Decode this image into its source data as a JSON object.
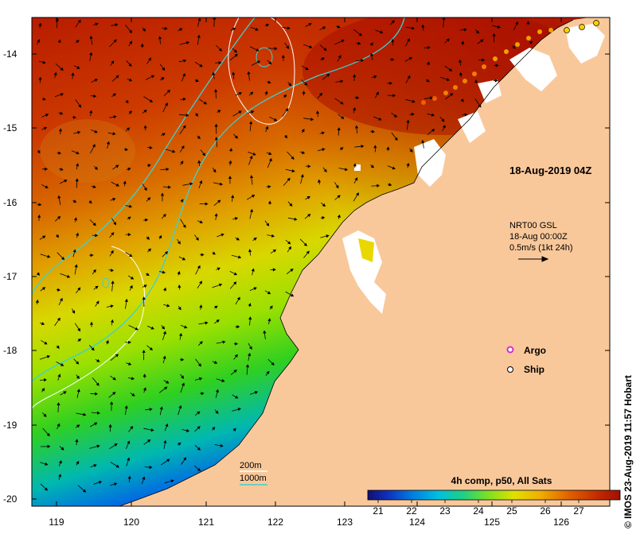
{
  "map": {
    "date_label": "18-Aug-2019 04Z",
    "current_info": {
      "line1": "NRT00 GSL",
      "line2": "18-Aug 00:00Z",
      "line3": "0.5m/s (1kt 24h)"
    },
    "legend": {
      "argo": "Argo",
      "ship": "Ship"
    },
    "isobaths": {
      "shallow": "200m",
      "deep": "1000m"
    },
    "colorbar": {
      "title": "4h comp, p50, All Sats",
      "ticks": [
        "21",
        "22",
        "23",
        "24",
        "25",
        "26",
        "27"
      ]
    },
    "credit": "© IMOS 23-Aug-2019 11:57 Hobart",
    "x_ticks": [
      "119",
      "120",
      "121",
      "122",
      "123",
      "124",
      "125",
      "126"
    ],
    "y_ticks": [
      "-14",
      "-15",
      "-16",
      "-17",
      "-18",
      "-19",
      "-20"
    ],
    "colors": {
      "land": "#f9c89a",
      "cloud": "#ffffff",
      "isobath_200": "#ffffff",
      "isobath_1000": "#3fd0d0",
      "argo": "#d030d0",
      "sst_warm": "#b81c00",
      "sst_cool": "#1020b0"
    }
  }
}
